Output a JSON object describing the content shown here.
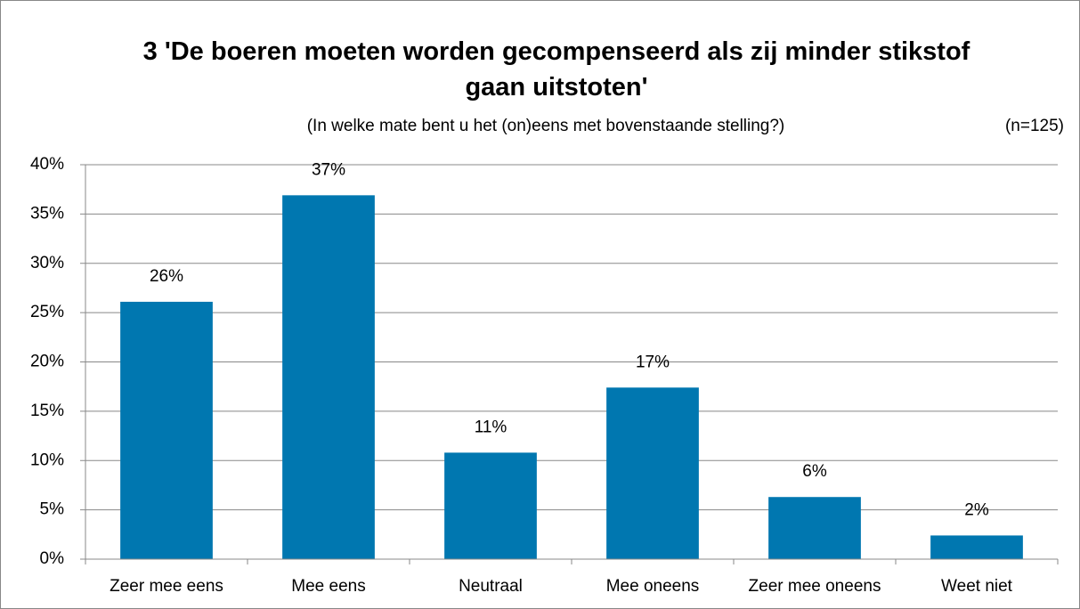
{
  "chart_data": {
    "type": "bar",
    "title": "3 'De boeren moeten worden gecompenseerd als zij minder stikstof gaan uitstoten'",
    "subtitle": "(In welke mate bent u het (on)eens met bovenstaande stelling?)",
    "annotation": "(n=125)",
    "categories": [
      "Zeer mee eens",
      "Mee eens",
      "Neutraal",
      "Mee oneens",
      "Zeer mee oneens",
      "Weet niet"
    ],
    "values": [
      26.1,
      36.9,
      10.8,
      17.4,
      6.3,
      2.4
    ],
    "value_labels": [
      "26%",
      "37%",
      "11%",
      "17%",
      "6%",
      "2%"
    ],
    "color": "#0077b0",
    "ylim": [
      0,
      40
    ],
    "yticks": [
      {
        "value": 0,
        "label": "0%"
      },
      {
        "value": 5,
        "label": "5%"
      },
      {
        "value": 10,
        "label": "10%"
      },
      {
        "value": 15,
        "label": "15%"
      },
      {
        "value": 20,
        "label": "20%"
      },
      {
        "value": 25,
        "label": "25%"
      },
      {
        "value": 30,
        "label": "30%"
      },
      {
        "value": 35,
        "label": "35%"
      },
      {
        "value": 40,
        "label": "40%"
      }
    ],
    "grid": true
  }
}
